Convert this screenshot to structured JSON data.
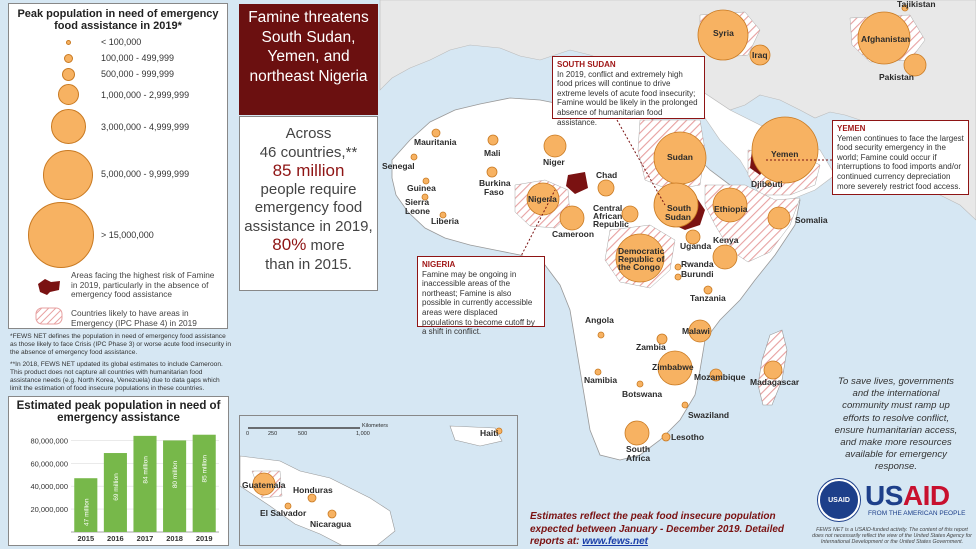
{
  "legend": {
    "title": "Peak population in need of emergency food assistance in 2019*",
    "sizes": [
      "< 100,000",
      "100,000 - 499,999",
      "500,000 - 999,999",
      "1,000,000 - 2,999,999",
      "3,000,000 - 4,999,999",
      "5,000,000 - 9,999,999",
      "> 15,000,000"
    ],
    "famine_risk": "Areas facing the highest risk of Famine in 2019, particularly in the absence of emergency food assistance",
    "emergency": "Countries likely to have areas in Emergency (IPC Phase 4) in 2019"
  },
  "footnotes": {
    "note1": "*FEWS NET defines the population in need of emergency food assistance as those likely to face Crisis (IPC Phase 3) or worse acute food insecurity in the absence of emergency food assistance.",
    "note2": "**In 2018, FEWS NET updated its global estimates to include Cameroon. This product does not capture all countries with humanitarian food assistance needs (e.g. North Korea, Venezuela) due to data gaps which limit the estimation of food insecure populations in these countries."
  },
  "headline": "Famine threatens South Sudan, Yemen, and northeast Nigeria",
  "stats": {
    "line1": "Across",
    "line2": "46 countries,**",
    "highlight1": "85 million",
    "line3": "people require emergency food assistance in 2019,",
    "highlight2": "80%",
    "line4": "more",
    "line5": "than in 2015."
  },
  "callouts": {
    "south_sudan": {
      "title": "SOUTH SUDAN",
      "text": "In 2019, conflict and extremely high food prices will continue to drive extreme levels of acute food insecurity; Famine would be likely in the prolonged absence of humanitarian food assistance."
    },
    "yemen": {
      "title": "YEMEN",
      "text": "Yemen continues to face the largest food security emergency in the world; Famine could occur if interruptions to food imports and/or continued currency depreciation more severely restrict food access."
    },
    "nigeria": {
      "title": "NIGERIA",
      "text": "Famine may be ongoing in inaccessible areas of the northeast; Famine is also possible in currently accessible areas were displaced populations to become cutoff by a shift in conflict."
    }
  },
  "countries": [
    "Tajikistan",
    "Syria",
    "Iraq",
    "Afghanistan",
    "Pakistan",
    "Mauritania",
    "Mali",
    "Niger",
    "Senegal",
    "Guinea",
    "Sierra Leone",
    "Liberia",
    "Burkina Faso",
    "Nigeria",
    "Chad",
    "Sudan",
    "Yemen",
    "Djibouti",
    "Central African Republic",
    "Cameroon",
    "South Sudan",
    "Ethiopia",
    "Somalia",
    "Uganda",
    "Kenya",
    "Democratic Republic of the Congo",
    "Rwanda",
    "Burundi",
    "Tanzania",
    "Angola",
    "Malawi",
    "Zambia",
    "Zimbabwe",
    "Mozambique",
    "Madagascar",
    "Namibia",
    "Botswana",
    "Swaziland",
    "Lesotho",
    "South Africa",
    "Haiti",
    "Guatemala",
    "Honduras",
    "El Salvador",
    "Nicaragua"
  ],
  "inset_scale": {
    "ticks": [
      "0",
      "250",
      "500",
      "1,000"
    ],
    "unit": "Kilometers"
  },
  "chart_data": {
    "type": "bar",
    "title": "Estimated peak population in need of emergency assistance",
    "categories": [
      "2015",
      "2016",
      "2017",
      "2018",
      "2019"
    ],
    "values": [
      47000000,
      69000000,
      84000000,
      80000000,
      85000000
    ],
    "value_labels": [
      "47 million",
      "69 million",
      "84 million",
      "80 million",
      "85 million"
    ],
    "yticks": [
      "20,000,000",
      "40,000,000",
      "60,000,000",
      "80,000,000"
    ],
    "ylim": [
      0,
      90000000
    ],
    "color": "#77b84a"
  },
  "closing_note": "To save lives, governments and the international community must ramp up efforts to resolve conflict, ensure humanitarian access, and make more resources available for emergency response.",
  "estimates": {
    "text": "Estimates reflect the peak food insecure population expected between January - December 2019.",
    "detail": "Detailed reports at:",
    "link": "www.fews.net"
  },
  "usaid": {
    "seal": "USAID",
    "wordmark_us": "US",
    "wordmark_aid": "AID",
    "tagline": "FROM THE AMERICAN PEOPLE",
    "disclaimer": "FEWS NET is a USAID-funded activity. The content of this report does not necessarily reflect the view of the United States Agency for International Development or the United States Government."
  },
  "colors": {
    "bubble": "#f7b262",
    "famine": "#7a1212",
    "headline_bg": "#6b1010",
    "usaid_blue": "#1d3f8a",
    "usaid_red": "#c8102e",
    "land": "#ffffff",
    "sea": "#d6e7f3",
    "other_land": "#e8e8e8"
  }
}
